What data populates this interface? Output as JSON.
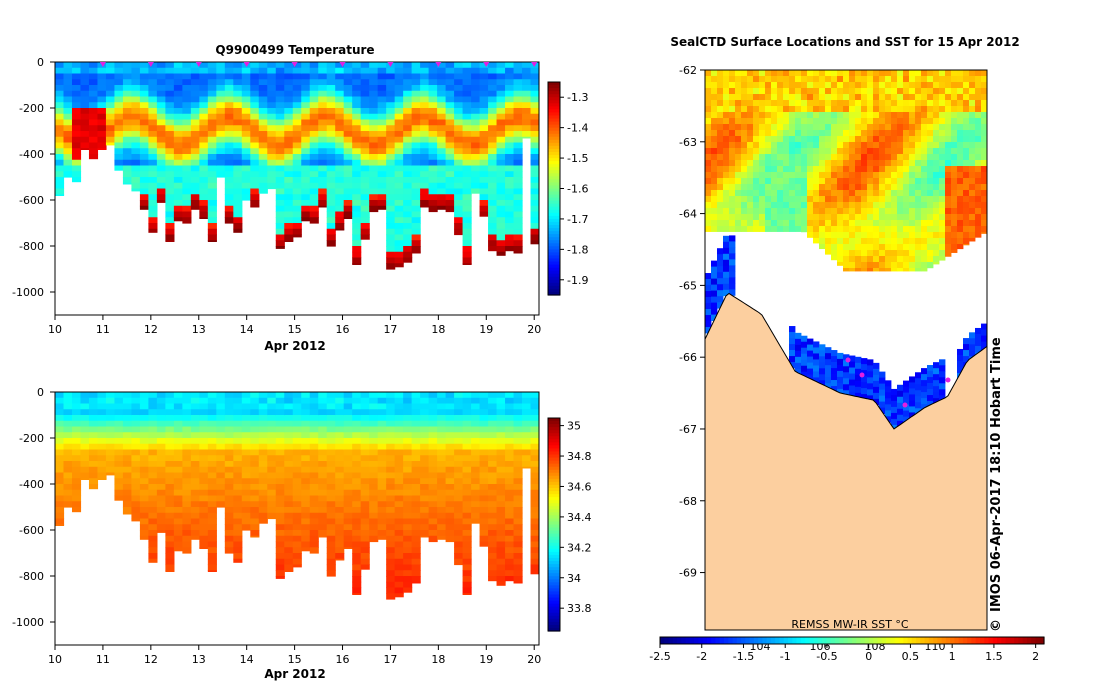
{
  "chart_data": [
    {
      "type": "heatmap",
      "title": "Q9900499  Temperature",
      "xlabel": "Apr 2012",
      "ylabel": "",
      "x_ticks": [
        "10",
        "11",
        "12",
        "13",
        "14",
        "15",
        "16",
        "17",
        "18",
        "19",
        "20"
      ],
      "y_ticks": [
        "0",
        "-200",
        "-400",
        "-600",
        "-800",
        "-1000"
      ],
      "xlim": [
        10,
        20.1
      ],
      "ylim": [
        -1100,
        0
      ],
      "colorbar": {
        "min": -1.95,
        "max": -1.25,
        "ticks": [
          "-1.3",
          "-1.4",
          "-1.5",
          "-1.6",
          "-1.7",
          "-1.8",
          "-1.9"
        ]
      },
      "profile_markers": [
        11,
        12,
        13,
        14,
        15,
        16,
        17,
        18,
        19,
        20
      ],
      "max_depths": [
        -580,
        -500,
        -520,
        -380,
        -420,
        -380,
        -360,
        -470,
        -530,
        -560,
        -640,
        -740,
        -610,
        -780,
        -690,
        -700,
        -640,
        -680,
        -780,
        -500,
        -700,
        -740,
        -600,
        -630,
        -570,
        -550,
        -810,
        -780,
        -760,
        -690,
        -700,
        -630,
        -800,
        -730,
        -680,
        -880,
        -770,
        -650,
        -640,
        -900,
        -890,
        -870,
        -830,
        -630,
        -650,
        -640,
        -650,
        -750,
        -880,
        -570,
        -670,
        -820,
        -840,
        -820,
        -830,
        -330,
        -790
      ]
    },
    {
      "type": "heatmap",
      "title": "",
      "xlabel": "Apr 2012",
      "ylabel": "",
      "x_ticks": [
        "10",
        "11",
        "12",
        "13",
        "14",
        "15",
        "16",
        "17",
        "18",
        "19",
        "20"
      ],
      "y_ticks": [
        "0",
        "-200",
        "-400",
        "-600",
        "-800",
        "-1000"
      ],
      "xlim": [
        10,
        20.1
      ],
      "ylim": [
        -1100,
        0
      ],
      "colorbar": {
        "min": 33.65,
        "max": 35.05,
        "ticks": [
          "35",
          "34.8",
          "34.6",
          "34.4",
          "34.2",
          "34",
          "33.8"
        ]
      }
    },
    {
      "type": "heatmap",
      "title": "SealCTD Surface Locations and SST for 15 Apr 2012",
      "xlabel": "",
      "ylabel": "",
      "y_ticks": [
        "-62",
        "-63",
        "-64",
        "-65",
        "-66",
        "-67",
        "-68",
        "-69"
      ],
      "ylim": [
        -69.8,
        -62
      ],
      "sst_label": "REMSS MW-IR SST °C",
      "inner_x_labels": [
        "104",
        "106",
        "108",
        "110"
      ],
      "colorbar": {
        "min": -2.5,
        "max": 2.1,
        "ticks": [
          "-2.5",
          "-2",
          "-1.5",
          "-1",
          "-0.5",
          "0",
          "0.5",
          "1",
          "1.5",
          "2"
        ]
      },
      "credit": "IMOS 06-Apr-2017 18:10 Hobart Time",
      "copyright": "©"
    }
  ]
}
